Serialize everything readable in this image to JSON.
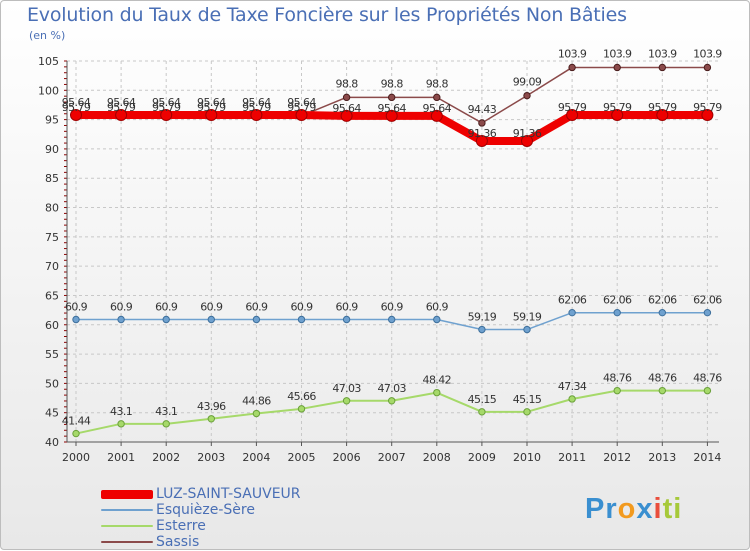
{
  "chart_data": {
    "type": "line",
    "title": "Evolution du Taux de Taxe Foncière sur les Propriétés Non Bâties",
    "ylabel": "(en %)",
    "xlabel": "",
    "ylim": [
      40,
      105
    ],
    "yticks": [
      40,
      45,
      50,
      55,
      60,
      65,
      70,
      75,
      80,
      85,
      90,
      95,
      100,
      105
    ],
    "categories": [
      "2000",
      "2001",
      "2002",
      "2003",
      "2004",
      "2005",
      "2006",
      "2007",
      "2008",
      "2009",
      "2010",
      "2011",
      "2012",
      "2013",
      "2014"
    ],
    "series": [
      {
        "name": "LUZ-SAINT-SAUVEUR",
        "color": "#ee0000",
        "values": [
          95.79,
          95.79,
          95.79,
          95.79,
          95.79,
          95.79,
          95.64,
          95.64,
          95.64,
          91.36,
          91.36,
          95.79,
          95.79,
          95.79,
          95.79
        ],
        "labels": [
          "95.79",
          "95.79",
          "95.79",
          "95.79",
          "95.79",
          "95.79",
          "95.64",
          "95.64",
          "95.64",
          "91.36",
          "91.36",
          "95.79",
          "95.79",
          "95.79",
          "95.79"
        ]
      },
      {
        "name": "Esquièze-Sère",
        "color": "#6fa1cf",
        "values": [
          60.9,
          60.9,
          60.9,
          60.9,
          60.9,
          60.9,
          60.9,
          60.9,
          60.9,
          59.19,
          59.19,
          62.06,
          62.06,
          62.06,
          62.06
        ],
        "labels": [
          "60.9",
          "60.9",
          "60.9",
          "60.9",
          "60.9",
          "60.9",
          "60.9",
          "60.9",
          "60.9",
          "59.19",
          "59.19",
          "62.06",
          "62.06",
          "62.06",
          "62.06"
        ]
      },
      {
        "name": "Esterre",
        "color": "#a6d96a",
        "values": [
          41.44,
          43.1,
          43.1,
          43.96,
          44.86,
          45.66,
          47.03,
          47.03,
          48.42,
          45.15,
          45.15,
          47.34,
          48.76,
          48.76,
          48.76
        ],
        "labels": [
          "41.44",
          "43.1",
          "43.1",
          "43.96",
          "44.86",
          "45.66",
          "47.03",
          "47.03",
          "48.42",
          "45.15",
          "45.15",
          "47.34",
          "48.76",
          "48.76",
          "48.76"
        ]
      },
      {
        "name": "Sassis",
        "color": "#8b4a4a",
        "values": [
          95.64,
          95.64,
          95.64,
          95.64,
          95.64,
          95.64,
          98.8,
          98.8,
          98.8,
          94.43,
          99.09,
          103.9,
          103.9,
          103.9,
          103.9
        ],
        "labels": [
          "95.64",
          "95.64",
          "95.64",
          "95.64",
          "95.64",
          "95.64",
          "98.8",
          "98.8",
          "98.8",
          "94.43",
          "99.09",
          "103.9",
          "103.9",
          "103.9",
          "103.9"
        ]
      }
    ],
    "legend_position": "bottom-left"
  },
  "logo": {
    "parts": [
      "Pr",
      "o",
      "x",
      "i",
      "ti"
    ],
    "colors": [
      "#3a8fd0",
      "#f29a1f",
      "#3a8fd0",
      "#e94e3c",
      "#a6c93a"
    ]
  }
}
